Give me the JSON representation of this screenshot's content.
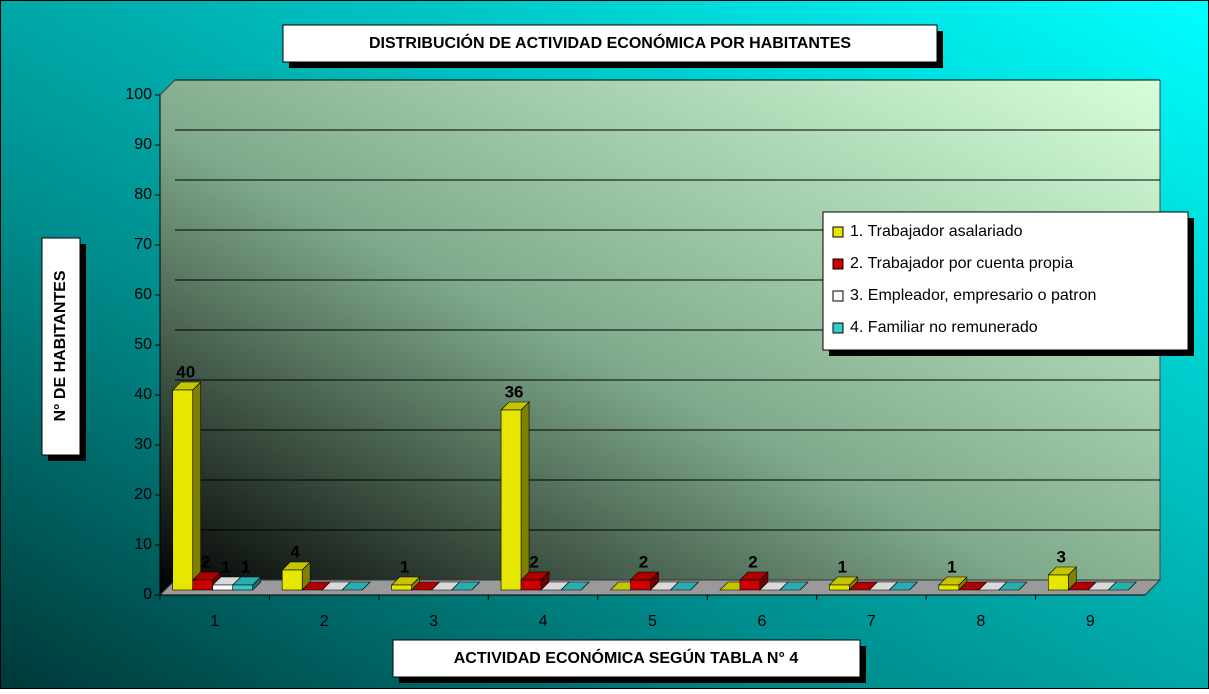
{
  "chart_data": {
    "type": "bar3d",
    "title": "DISTRIBUCIÓN DE ACTIVIDAD ECONÓMICA POR HABITANTES",
    "x_label": "ACTIVIDAD ECONÓMICA SEGÚN TABLA N° 4",
    "y_label": "N° DE HABITANTES",
    "categories": [
      "1",
      "2",
      "3",
      "4",
      "5",
      "6",
      "7",
      "8",
      "9"
    ],
    "series": [
      {
        "name": "1. Trabajador asalariado",
        "color": "#e6e600",
        "values": [
          40,
          4,
          1,
          36,
          0,
          0,
          1,
          1,
          3
        ]
      },
      {
        "name": "2. Trabajador por cuenta propia",
        "color": "#cc0000",
        "values": [
          2,
          0,
          0,
          2,
          2,
          2,
          0,
          0,
          0
        ]
      },
      {
        "name": "3. Empleador, empresario o patron",
        "color": "#ffffff",
        "values": [
          1,
          0,
          0,
          0,
          0,
          0,
          0,
          0,
          0
        ]
      },
      {
        "name": "4. Familiar no remunerado",
        "color": "#33cccc",
        "values": [
          1,
          0,
          0,
          0,
          0,
          0,
          0,
          0,
          0
        ]
      }
    ],
    "ylim": [
      0,
      100
    ],
    "yticks": [
      0,
      10,
      20,
      30,
      40,
      50,
      60,
      70,
      80,
      90,
      100
    ],
    "grid": true,
    "legend": "right"
  }
}
